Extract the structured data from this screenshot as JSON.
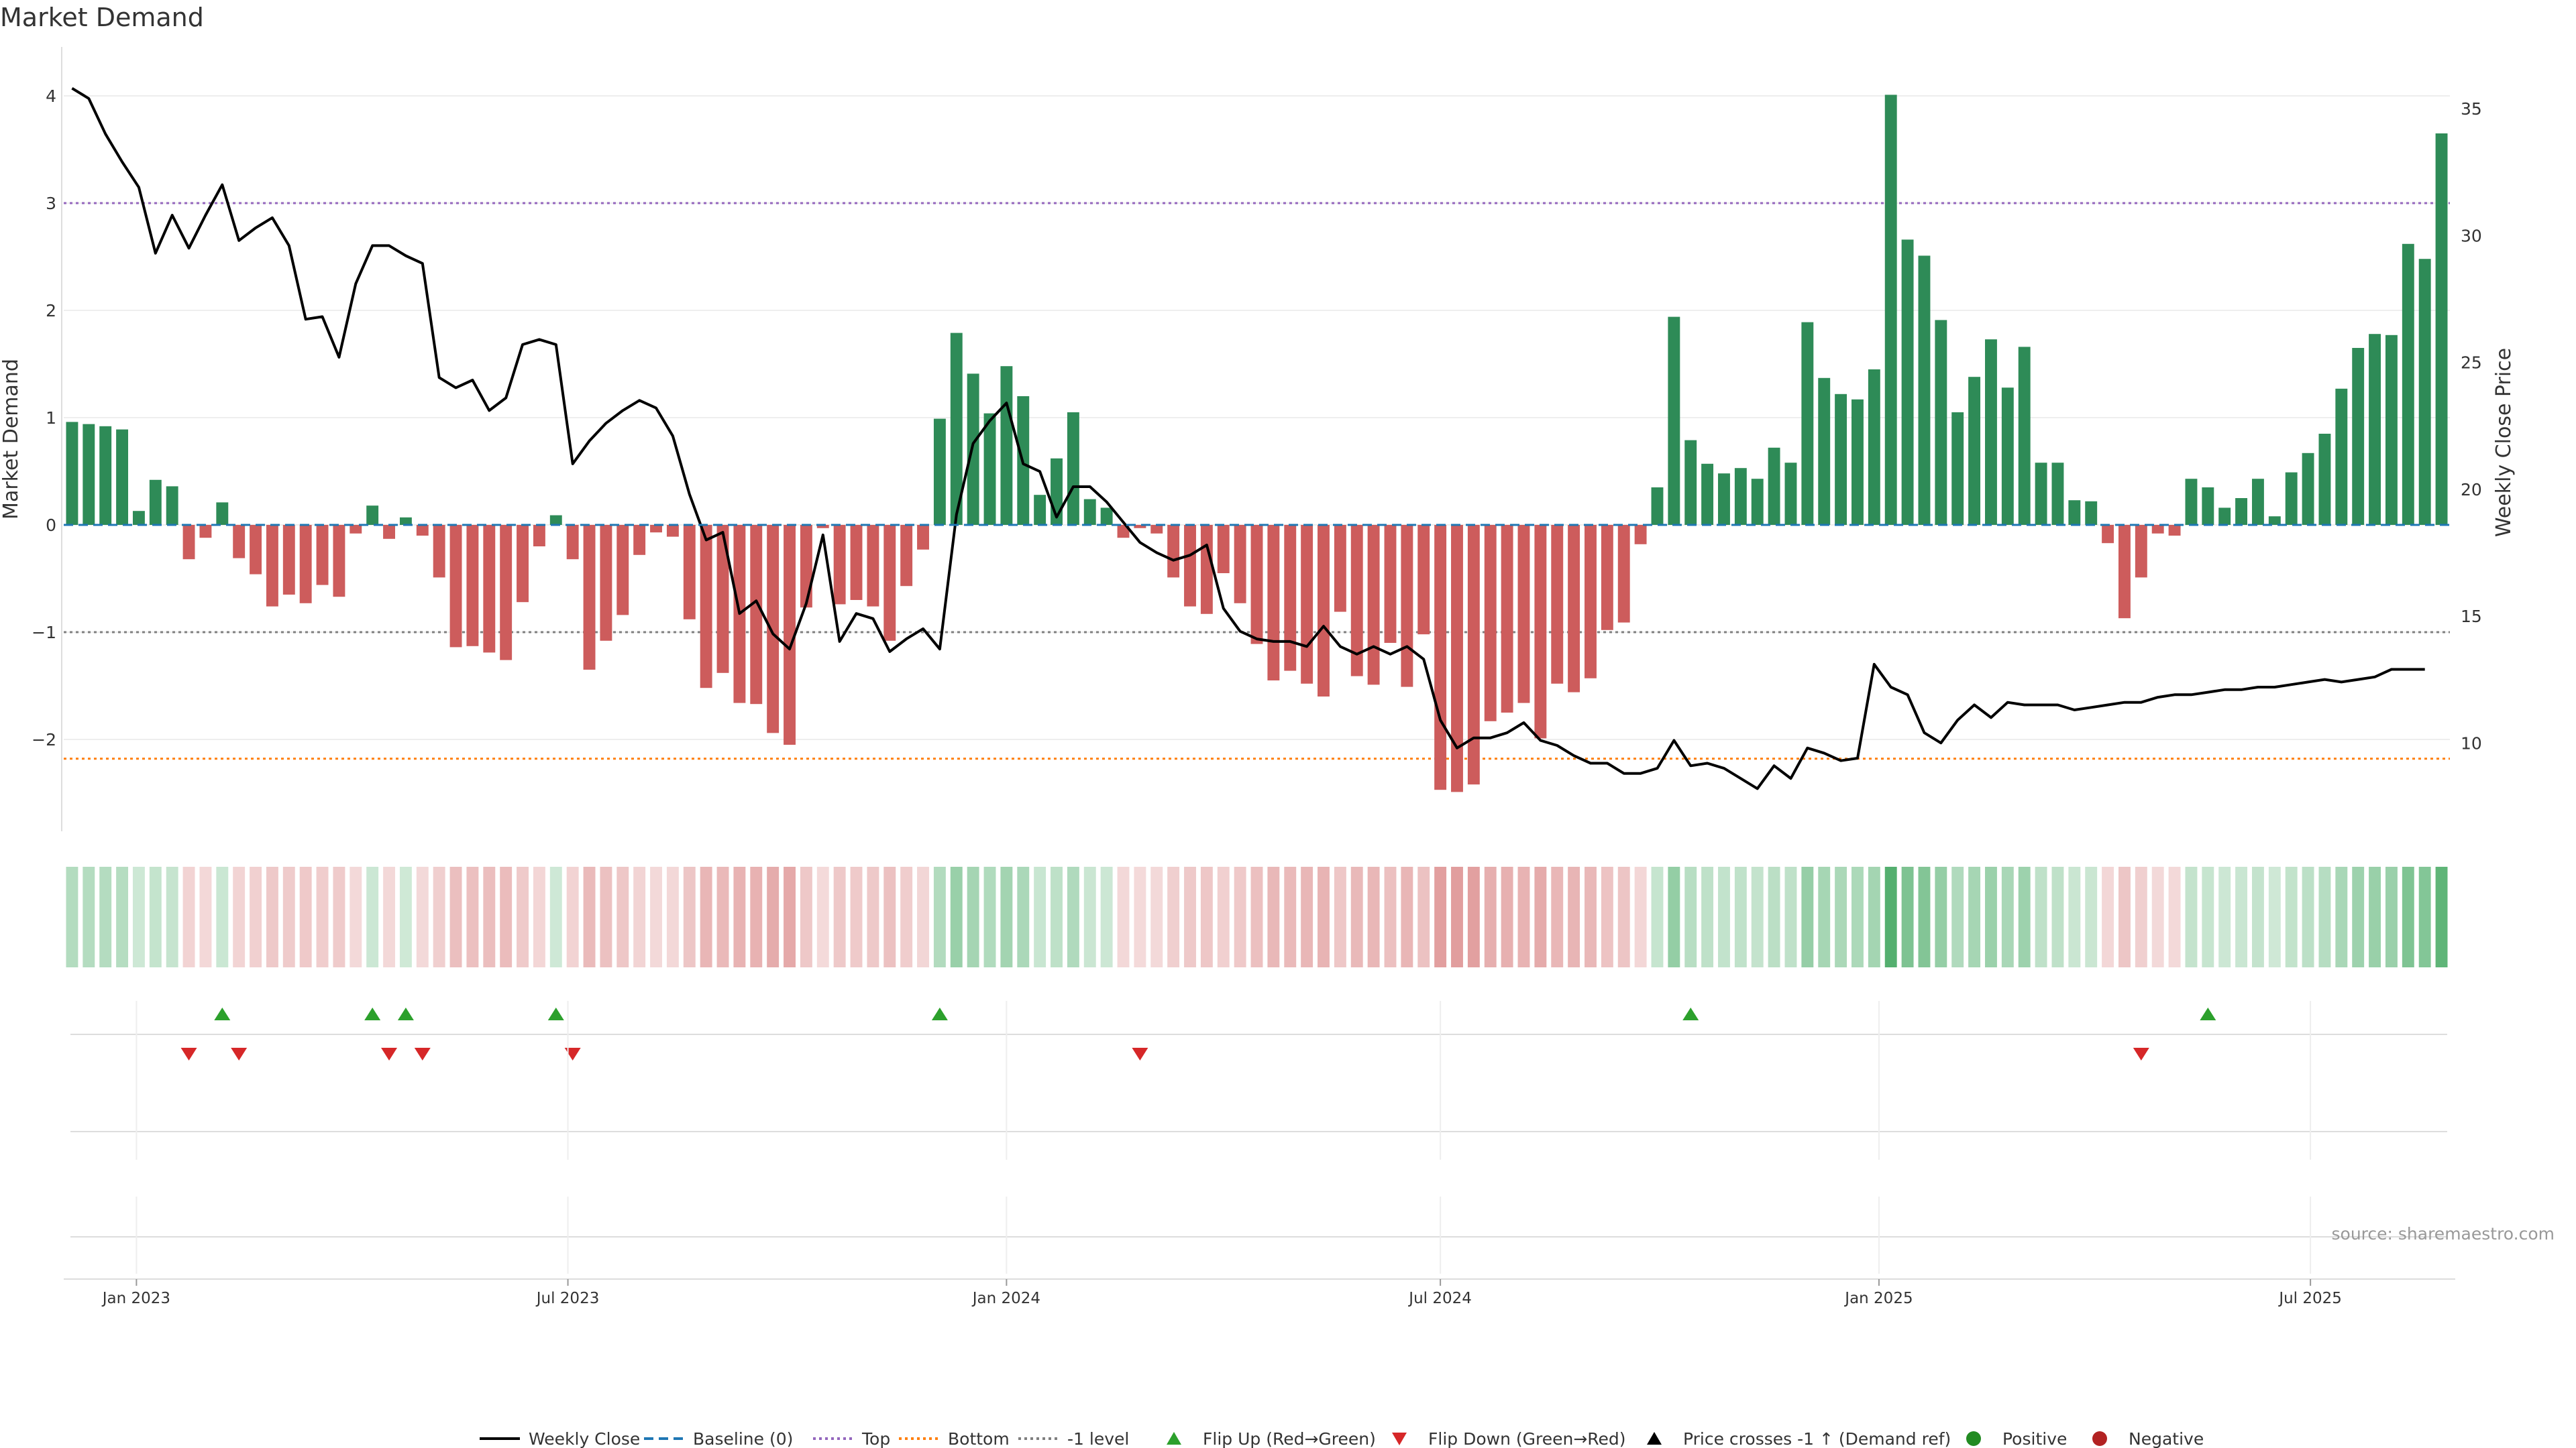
{
  "title": "Market Demand",
  "source": "source: sharemaestro.com",
  "colors": {
    "positive_bar": "#2e8b57",
    "negative_bar": "#cd5c5c",
    "price_line": "#000000",
    "baseline": "#1f77b4",
    "top_line": "#9467bd",
    "bottom_line": "#ff7f0e",
    "minus1_line": "#7f7f7f",
    "flip_up": "#2ca02c",
    "flip_down": "#d62728",
    "positive_dot": "#228b22",
    "negative_dot": "#b22222"
  },
  "chart_data": {
    "type": "bar",
    "title": "Market Demand",
    "ylabel": "Market Demand",
    "y2label": "Weekly Close Price",
    "ylim": [
      -2.9,
      4.2
    ],
    "y2lim": [
      6.9,
      36.5
    ],
    "yticks": [
      -2,
      -1,
      0,
      1,
      2,
      3,
      4
    ],
    "y2ticks": [
      10,
      15,
      20,
      25,
      30,
      35
    ],
    "reference_lines": {
      "top": 3,
      "bottom": -2.18,
      "minus1": -1,
      "baseline": 0
    },
    "x_start": "2022-12-05",
    "x_tick_labels": [
      "Jan 2023",
      "Jul 2023",
      "Jan 2024",
      "Jul 2024",
      "Jan 2025",
      "Jul 2025"
    ],
    "x_tick_dates": [
      "2023-01-01",
      "2023-07-01",
      "2024-01-01",
      "2024-07-01",
      "2025-01-01",
      "2025-07-01"
    ],
    "demand": [
      0.96,
      0.94,
      0.92,
      0.89,
      0.13,
      0.42,
      0.36,
      -0.32,
      -0.12,
      0.21,
      -0.31,
      -0.46,
      -0.76,
      -0.65,
      -0.73,
      -0.56,
      -0.67,
      -0.08,
      0.18,
      -0.13,
      0.07,
      -0.1,
      -0.49,
      -1.14,
      -1.13,
      -1.19,
      -1.26,
      -0.72,
      -0.2,
      0.09,
      -0.32,
      -1.35,
      -1.08,
      -0.84,
      -0.28,
      -0.07,
      -0.11,
      -0.88,
      -1.52,
      -1.38,
      -1.66,
      -1.67,
      -1.94,
      -2.05,
      -0.77,
      -0.03,
      -0.74,
      -0.7,
      -0.76,
      -1.08,
      -0.57,
      -0.23,
      0.99,
      1.79,
      1.41,
      1.04,
      1.48,
      1.2,
      0.28,
      0.62,
      1.05,
      0.24,
      0.16,
      -0.12,
      -0.03,
      -0.08,
      -0.49,
      -0.76,
      -0.83,
      -0.45,
      -0.73,
      -1.11,
      -1.45,
      -1.36,
      -1.48,
      -1.6,
      -0.81,
      -1.41,
      -1.49,
      -1.1,
      -1.51,
      -1.02,
      -2.47,
      -2.49,
      -2.42,
      -1.83,
      -1.75,
      -1.66,
      -1.99,
      -1.48,
      -1.56,
      -1.43,
      -0.98,
      -0.91,
      -0.18,
      0.35,
      1.94,
      0.79,
      0.57,
      0.48,
      0.53,
      0.43,
      0.72,
      0.58,
      1.89,
      1.37,
      1.22,
      1.17,
      1.45,
      4.01,
      2.66,
      2.51,
      1.91,
      1.05,
      1.38,
      1.73,
      1.28,
      1.66,
      0.58,
      0.58,
      0.23,
      0.22,
      -0.17,
      -0.87,
      -0.49,
      -0.08,
      -0.1,
      0.43,
      0.35,
      0.16,
      0.25,
      0.43,
      0.08,
      0.49,
      0.67,
      0.85,
      1.27,
      1.65,
      1.78,
      1.77,
      2.62,
      2.48,
      3.65
    ],
    "weekly_close": [
      35.8,
      35.4,
      34.0,
      32.9,
      31.9,
      29.3,
      30.8,
      29.5,
      30.8,
      32.0,
      29.8,
      30.3,
      30.7,
      29.6,
      26.7,
      26.8,
      25.2,
      28.1,
      29.6,
      29.6,
      29.2,
      28.9,
      24.4,
      24.0,
      24.3,
      23.1,
      23.6,
      25.7,
      25.9,
      25.7,
      21.0,
      21.9,
      22.6,
      23.1,
      23.5,
      23.2,
      22.1,
      19.8,
      18.0,
      18.3,
      15.1,
      15.6,
      14.3,
      13.7,
      15.5,
      18.2,
      14.0,
      15.1,
      14.9,
      13.6,
      14.1,
      14.5,
      13.7,
      19.0,
      21.8,
      22.7,
      23.4,
      21.0,
      20.7,
      18.9,
      20.1,
      20.1,
      19.5,
      18.7,
      17.9,
      17.5,
      17.2,
      17.4,
      17.8,
      15.3,
      14.4,
      14.1,
      14.0,
      14.0,
      13.8,
      14.6,
      13.8,
      13.5,
      13.8,
      13.5,
      13.8,
      13.3,
      10.9,
      9.8,
      10.2,
      10.2,
      10.4,
      10.8,
      10.1,
      9.9,
      9.5,
      9.2,
      9.2,
      8.8,
      8.8,
      9.0,
      10.1,
      9.1,
      9.2,
      9.0,
      8.6,
      8.2,
      9.1,
      8.6,
      9.8,
      9.6,
      9.3,
      9.4,
      13.1,
      12.2,
      11.9,
      10.4,
      10.0,
      10.9,
      11.5,
      11.0,
      11.6,
      11.5,
      11.5,
      11.5,
      11.3,
      11.4,
      11.5,
      11.6,
      11.6,
      11.8,
      11.9,
      11.9,
      12.0,
      12.1,
      12.1,
      12.2,
      12.2,
      12.3,
      12.4,
      12.5,
      12.4,
      12.5,
      12.6,
      12.9,
      12.9,
      12.9
    ],
    "flip_up_weeks": [
      9,
      18,
      20,
      29,
      52,
      97,
      128
    ],
    "flip_down_weeks": [
      7,
      10,
      19,
      21,
      30,
      64,
      124
    ]
  },
  "legend": [
    {
      "label": "Weekly Close",
      "marker": "solid-line",
      "color": "#000000"
    },
    {
      "label": "Baseline (0)",
      "marker": "dashed-line",
      "color": "#1f77b4"
    },
    {
      "label": "Top",
      "marker": "dotted-line",
      "color": "#9467bd"
    },
    {
      "label": "Bottom",
      "marker": "dotted-line",
      "color": "#ff7f0e"
    },
    {
      "label": "-1 level",
      "marker": "dotted-line",
      "color": "#7f7f7f"
    },
    {
      "label": "Flip Up (Red→Green)",
      "marker": "triangle-up",
      "color": "#2ca02c"
    },
    {
      "label": "Flip Down (Green→Red)",
      "marker": "triangle-down",
      "color": "#d62728"
    },
    {
      "label": "Price crosses -1 ↑ (Demand ref)",
      "marker": "triangle-up",
      "color": "#000000"
    },
    {
      "label": "Positive",
      "marker": "circle",
      "color": "#228b22"
    },
    {
      "label": "Negative",
      "marker": "circle",
      "color": "#b22222"
    }
  ]
}
